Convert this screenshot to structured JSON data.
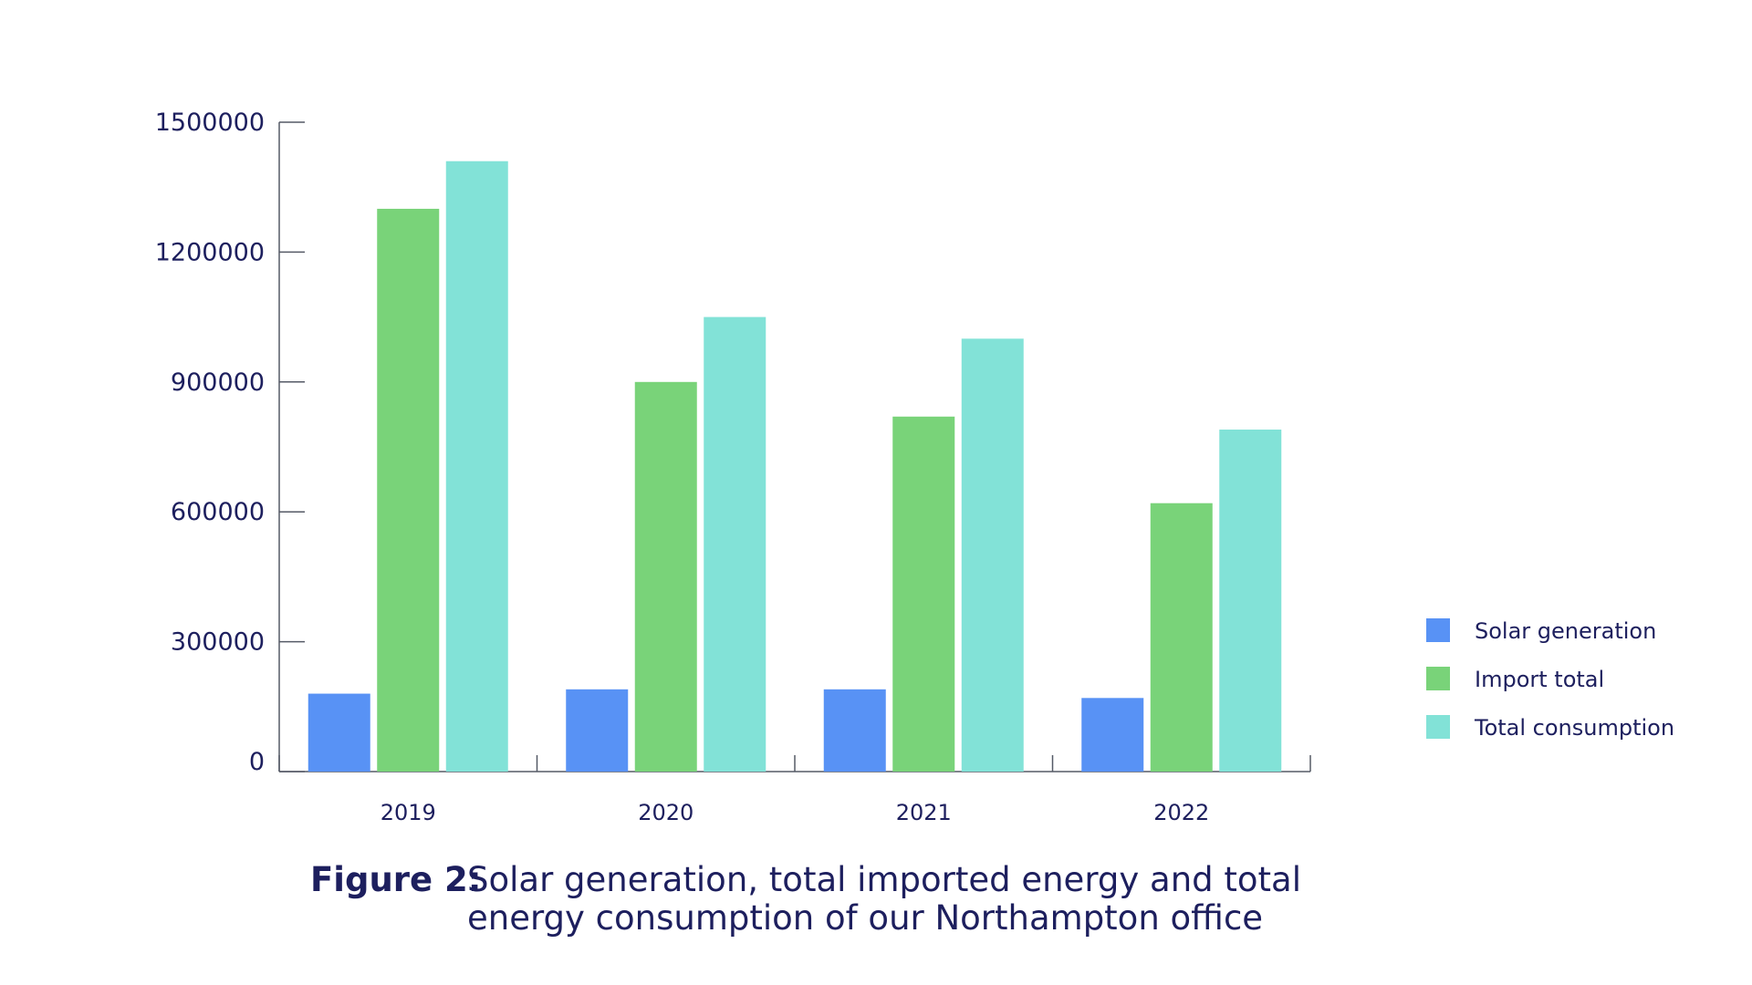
{
  "chart_data": {
    "type": "bar",
    "categories": [
      "2019",
      "2020",
      "2021",
      "2022"
    ],
    "series": [
      {
        "name": "Solar generation",
        "color": "#5892f5",
        "values": [
          180000,
          190000,
          190000,
          170000
        ]
      },
      {
        "name": "Import total",
        "color": "#79d379",
        "values": [
          1300000,
          900000,
          820000,
          620000
        ]
      },
      {
        "name": "Total consumption",
        "color": "#82e2d7",
        "values": [
          1410000,
          1050000,
          1000000,
          790000
        ]
      }
    ],
    "y_ticks": [
      "0",
      "300000",
      "600000",
      "900000",
      "1200000",
      "1500000"
    ],
    "ylim": [
      0,
      1500000
    ],
    "legend_position": "right",
    "grid": false,
    "caption": {
      "label": "Figure 2:",
      "line1": "Solar generation, total imported energy and total",
      "line2": "energy consumption of our Northampton office"
    }
  }
}
